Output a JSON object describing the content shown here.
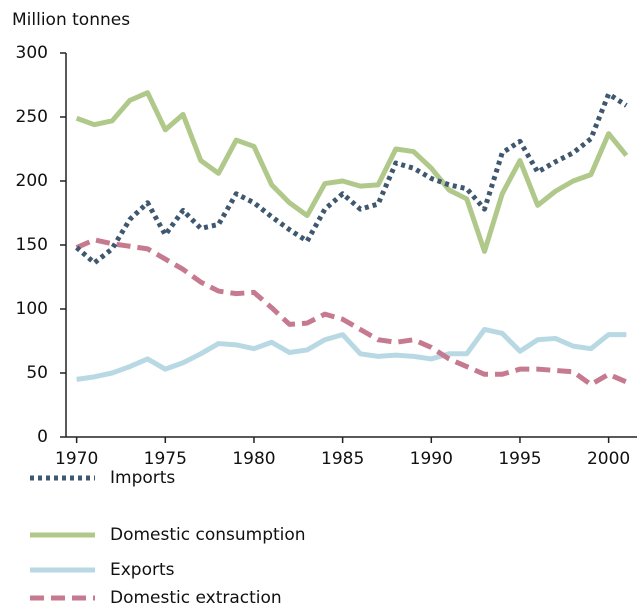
{
  "chart_data": {
    "type": "line",
    "y_axis_label": "Million tonnes",
    "x": [
      1970,
      1971,
      1972,
      1973,
      1974,
      1975,
      1976,
      1977,
      1978,
      1979,
      1980,
      1981,
      1982,
      1983,
      1984,
      1985,
      1986,
      1987,
      1988,
      1989,
      1990,
      1991,
      1992,
      1993,
      1994,
      1995,
      1996,
      1997,
      1998,
      1999,
      2000,
      2001
    ],
    "series": [
      {
        "name": "Imports",
        "color": "#3f5870",
        "dash": "dotted",
        "values": [
          148,
          136,
          147,
          170,
          183,
          158,
          177,
          163,
          166,
          190,
          183,
          172,
          162,
          153,
          178,
          190,
          178,
          182,
          214,
          210,
          202,
          197,
          194,
          178,
          222,
          231,
          207,
          215,
          222,
          233,
          268,
          259
        ]
      },
      {
        "name": "Domestic consumption",
        "color": "#b0c98a",
        "dash": "solid",
        "values": [
          249,
          244,
          247,
          263,
          269,
          240,
          252,
          216,
          206,
          232,
          227,
          197,
          183,
          173,
          198,
          200,
          196,
          197,
          225,
          223,
          210,
          193,
          186,
          145,
          190,
          216,
          181,
          192,
          200,
          205,
          237,
          220
        ]
      },
      {
        "name": "Exports",
        "color": "#b8d9e3",
        "dash": "solid",
        "values": [
          45,
          47,
          50,
          55,
          61,
          53,
          58,
          65,
          73,
          72,
          69,
          74,
          66,
          68,
          76,
          80,
          65,
          63,
          64,
          63,
          61,
          65,
          65,
          84,
          81,
          67,
          76,
          77,
          71,
          69,
          80,
          80
        ]
      },
      {
        "name": "Domestic extraction",
        "color": "#c57a90",
        "dash": "dashed",
        "values": [
          148,
          154,
          151,
          149,
          147,
          139,
          131,
          121,
          114,
          112,
          113,
          101,
          88,
          89,
          96,
          92,
          84,
          76,
          74,
          76,
          70,
          61,
          55,
          49,
          49,
          53,
          53,
          52,
          51,
          41,
          49,
          43
        ]
      }
    ],
    "xlim": [
      1969.4,
      2001.6
    ],
    "xticks": [
      1970,
      1975,
      1980,
      1985,
      1990,
      1995,
      2000
    ],
    "ylim": [
      0,
      300
    ],
    "yticks": [
      0,
      50,
      100,
      150,
      200,
      250,
      300
    ]
  }
}
